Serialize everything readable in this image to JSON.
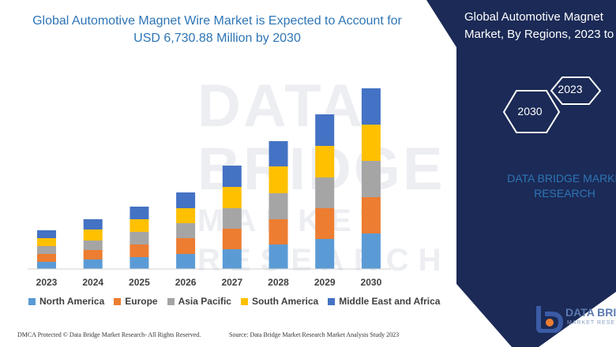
{
  "header": {
    "title_line1": "Global Automotive Magnet Wire Market is Expected to Account for",
    "title_line2": "USD 6,730.88 Million by 2030"
  },
  "watermark": {
    "line1": "DATA BRIDGE",
    "line2": "MARKET RESEARCH"
  },
  "side_panel": {
    "title_line1": "Global Automotive Magnet",
    "title_line2": "Market, By Regions, 2023 to",
    "hex_2023": "2023",
    "hex_2030": "2030",
    "brand_line1": "DATA BRIDGE MARKE",
    "brand_line2": "RESEARCH",
    "background": "#1b2a56",
    "accent": "#2e75b6"
  },
  "footer": {
    "left": "DMCA Protected © Data Bridge Market Research- All Rights Reserved.",
    "right": "Source: Data Bridge Market Research  Market Analysis Study 2023"
  },
  "logo": {
    "text1": "DATA BRID",
    "text2": "MARKET RESE",
    "icon": "data-bridge-logo-icon"
  },
  "chart_data": {
    "type": "bar",
    "stacked": true,
    "categories": [
      "2023",
      "2024",
      "2025",
      "2026",
      "2027",
      "2028",
      "2029",
      "2030"
    ],
    "series": [
      {
        "name": "North America",
        "color": "#5b9bd5",
        "values": [
          9,
          12,
          15,
          19,
          25,
          31,
          38,
          45
        ]
      },
      {
        "name": "Europe",
        "color": "#ed7d31",
        "values": [
          10,
          12,
          16,
          20,
          26,
          32,
          39,
          46
        ]
      },
      {
        "name": "Asia Pacific",
        "color": "#a5a5a5",
        "values": [
          10,
          12,
          16,
          19,
          26,
          33,
          39,
          46
        ]
      },
      {
        "name": "South America",
        "color": "#ffc000",
        "values": [
          10,
          14,
          16,
          19,
          27,
          34,
          40,
          46
        ]
      },
      {
        "name": "Middle East and Africa",
        "color": "#4472c4",
        "values": [
          10,
          13,
          16,
          20,
          27,
          32,
          40,
          46
        ]
      }
    ],
    "xlabel": "",
    "ylabel": "",
    "ylim": [
      0,
      240
    ],
    "grid": false,
    "legend_position": "bottom"
  }
}
